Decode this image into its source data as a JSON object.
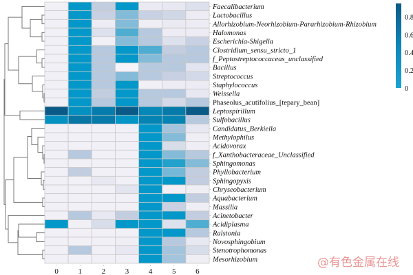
{
  "chart_data": {
    "type": "heatmap",
    "title": "",
    "xlabel": "",
    "ylabel": "",
    "columns": [
      "0",
      "1",
      "2",
      "3",
      "4",
      "5",
      "6"
    ],
    "rows": [
      {
        "label": "Faecalibacterium",
        "italic": true,
        "values": [
          0.02,
          0.5,
          0.2,
          0.5,
          0.05,
          0.06,
          0.1
        ]
      },
      {
        "label": "Lactobacillus",
        "italic": true,
        "values": [
          0.02,
          0.5,
          0.18,
          0.3,
          0.18,
          0.15,
          0.04
        ]
      },
      {
        "label": "Allorhizobium-Neorhizobium-Pararhizobium-Rhizobium",
        "italic": true,
        "values": [
          0.02,
          0.5,
          0.04,
          0.3,
          0.03,
          0.05,
          0.04
        ]
      },
      {
        "label": "Halomonas",
        "italic": true,
        "values": [
          0.02,
          0.5,
          0.1,
          0.38,
          0.22,
          0.04,
          0.04
        ]
      },
      {
        "label": "Escherichia-Shigella",
        "italic": true,
        "values": [
          0.02,
          0.5,
          0.02,
          0.3,
          0.22,
          0.1,
          0.18
        ]
      },
      {
        "label": "Clostridium_sensu_stricto_1",
        "italic": true,
        "values": [
          0.02,
          0.5,
          0.22,
          0.5,
          0.38,
          0.2,
          0.22
        ]
      },
      {
        "label": "f_Peptostreptococcaceas_unclassified",
        "italic": true,
        "values": [
          0.02,
          0.5,
          0.22,
          0.5,
          0.3,
          0.22,
          0.22
        ]
      },
      {
        "label": "Bacillus",
        "italic": true,
        "values": [
          0.02,
          0.5,
          0.22,
          0.0,
          0.22,
          0.22,
          0.08
        ]
      },
      {
        "label": "Streptococcus",
        "italic": true,
        "values": [
          0.02,
          0.5,
          0.22,
          0.3,
          0.22,
          0.18,
          0.14
        ]
      },
      {
        "label": "Staphylococcus",
        "italic": true,
        "values": [
          0.02,
          0.5,
          0.22,
          0.5,
          0.02,
          0.04,
          0.04
        ]
      },
      {
        "label": "Weissella",
        "italic": true,
        "values": [
          0.02,
          0.5,
          0.2,
          0.5,
          0.22,
          0.22,
          0.06
        ]
      },
      {
        "label": "Phaseolus_acutifolius_[tepary_bean]",
        "italic": false,
        "values": [
          0.02,
          0.5,
          0.22,
          0.5,
          0.22,
          0.14,
          0.22
        ]
      },
      {
        "label": "Leptospirillum",
        "italic": true,
        "values": [
          0.95,
          0.55,
          0.7,
          0.95,
          0.62,
          0.72,
          0.95
        ]
      },
      {
        "label": "Sulfobacillus",
        "italic": true,
        "values": [
          0.55,
          0.75,
          0.72,
          0.52,
          0.65,
          0.65,
          0.22
        ]
      },
      {
        "label": "Candidatus_Berkiella",
        "italic": true,
        "values": [
          0.02,
          0.02,
          0.02,
          0.02,
          0.5,
          0.25,
          0.06
        ]
      },
      {
        "label": "Methylophilus",
        "italic": true,
        "values": [
          0.02,
          0.02,
          0.02,
          0.02,
          0.5,
          0.3,
          0.03
        ]
      },
      {
        "label": "Acidovorax",
        "italic": true,
        "values": [
          0.02,
          0.02,
          0.02,
          0.02,
          0.5,
          0.12,
          0.03
        ]
      },
      {
        "label": "f_Xanthobacteraceae_Unclassified",
        "italic": true,
        "values": [
          0.02,
          0.22,
          0.02,
          0.02,
          0.5,
          0.3,
          0.22
        ]
      },
      {
        "label": "Sphingomonas",
        "italic": true,
        "values": [
          0.02,
          0.02,
          0.02,
          0.02,
          0.5,
          0.45,
          0.3
        ]
      },
      {
        "label": "Phyllobacterium",
        "italic": true,
        "values": [
          0.02,
          0.2,
          0.02,
          0.02,
          0.5,
          0.32,
          0.2
        ]
      },
      {
        "label": "Sphingopyxis",
        "italic": true,
        "values": [
          0.02,
          0.02,
          0.06,
          0.02,
          0.5,
          0.5,
          0.2
        ]
      },
      {
        "label": "Chryseobacterium",
        "italic": true,
        "values": [
          0.02,
          0.02,
          0.02,
          0.08,
          0.5,
          0.02,
          0.03
        ]
      },
      {
        "label": "Aquabacterium",
        "italic": true,
        "values": [
          0.02,
          0.02,
          0.02,
          0.02,
          0.5,
          0.5,
          0.2
        ]
      },
      {
        "label": "Massilia",
        "italic": true,
        "values": [
          0.02,
          0.02,
          0.02,
          0.02,
          0.5,
          0.18,
          0.03
        ]
      },
      {
        "label": "Acinetobacter",
        "italic": true,
        "values": [
          0.02,
          0.22,
          0.06,
          0.2,
          0.5,
          0.5,
          0.2
        ]
      },
      {
        "label": "Acidiplasma",
        "italic": true,
        "values": [
          0.5,
          0.02,
          0.12,
          0.5,
          0.5,
          0.1,
          0.38
        ]
      },
      {
        "label": "Ralstonia",
        "italic": true,
        "values": [
          0.02,
          0.02,
          0.02,
          0.02,
          0.5,
          0.5,
          0.22
        ]
      },
      {
        "label": "Novosphingobium",
        "italic": true,
        "values": [
          0.02,
          0.02,
          0.02,
          0.03,
          0.5,
          0.22,
          0.06
        ]
      },
      {
        "label": "Stenotrophomonas",
        "italic": true,
        "values": [
          0.02,
          0.22,
          0.02,
          0.06,
          0.5,
          0.25,
          0.12
        ]
      },
      {
        "label": "Mesorhizobium",
        "italic": true,
        "values": [
          0.02,
          0.02,
          0.02,
          0.02,
          0.5,
          0.25,
          0.03
        ]
      }
    ],
    "colorbar": {
      "range": [
        0,
        0.95
      ],
      "ticks": [
        "0",
        "0.2",
        "0.4",
        "0.6",
        "0.8"
      ],
      "tick_values": [
        0,
        0.2,
        0.4,
        0.6,
        0.8
      ],
      "colors": [
        "#f7f4f9",
        "#c3cde0",
        "#0398c9",
        "#0a5a88"
      ]
    },
    "dendrogram": "left, hierarchical clustering of rows"
  },
  "watermark": "@有色金属在线"
}
